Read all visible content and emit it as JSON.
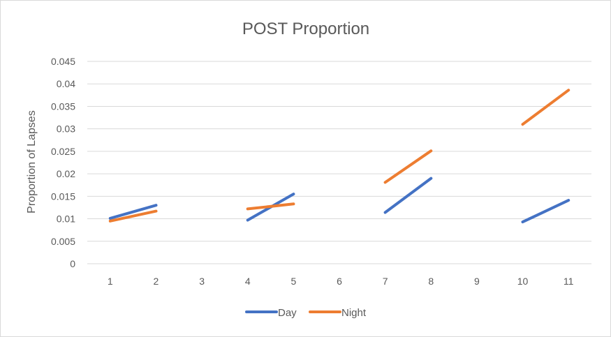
{
  "chart_data": {
    "type": "line",
    "title": "POST Proportion",
    "xlabel": "",
    "ylabel": "Proportion of Lapses",
    "categories": [
      "1",
      "2",
      "3",
      "4",
      "5",
      "6",
      "7",
      "8",
      "9",
      "10",
      "11"
    ],
    "ylim": [
      0,
      0.045
    ],
    "yticks": [
      "0",
      "0.005",
      "0.01",
      "0.015",
      "0.02",
      "0.025",
      "0.03",
      "0.035",
      "0.04",
      "0.045"
    ],
    "grid": true,
    "legend_position": "bottom",
    "series": [
      {
        "name": "Day",
        "color": "#4472c4",
        "values": [
          0.0101,
          0.013,
          null,
          0.0097,
          0.0155,
          null,
          0.0114,
          0.019,
          null,
          0.0093,
          0.0141
        ]
      },
      {
        "name": "Night",
        "color": "#ed7d31",
        "values": [
          0.0095,
          0.0117,
          null,
          0.0122,
          0.0133,
          null,
          0.0181,
          0.0251,
          null,
          0.031,
          0.0386
        ]
      }
    ]
  }
}
